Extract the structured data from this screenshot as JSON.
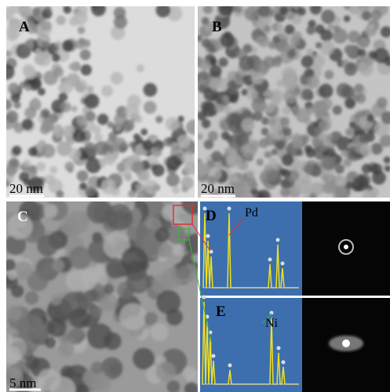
{
  "panels": {
    "a": {
      "label": "A",
      "scale_bar": "20 nm"
    },
    "b": {
      "label": "B",
      "scale_bar": "20 nm"
    },
    "c": {
      "label": "C",
      "scale_bar": "5 nm"
    }
  },
  "spectra": {
    "d": {
      "label": "D",
      "element": "Pd"
    },
    "e": {
      "label": "E",
      "element": "Ni"
    }
  }
}
